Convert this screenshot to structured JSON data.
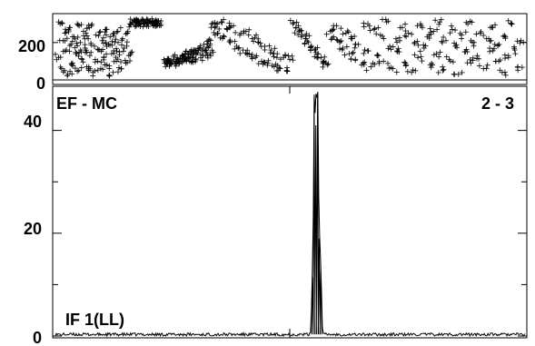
{
  "chart_data": [
    {
      "type": "scatter",
      "ylim": [
        0,
        340
      ],
      "yticks": [
        0,
        200
      ],
      "ytick_labels": [
        "0",
        "200"
      ],
      "marker": "+",
      "grid": false,
      "phase_points": [
        [
          0.02,
          120
        ],
        [
          0.03,
          300
        ],
        [
          0.04,
          60
        ],
        [
          0.05,
          210
        ],
        [
          0.06,
          250
        ],
        [
          0.07,
          160
        ],
        [
          0.08,
          30
        ],
        [
          0.09,
          280
        ],
        [
          0.1,
          190
        ],
        [
          0.11,
          90
        ],
        [
          0.12,
          230
        ],
        [
          0.13,
          140
        ],
        [
          0.14,
          300
        ],
        [
          0.15,
          50
        ],
        [
          0.16,
          200
        ],
        [
          0.17,
          110
        ],
        [
          0.18,
          260
        ],
        [
          0.19,
          170
        ],
        [
          0.2,
          70
        ],
        [
          0.21,
          220
        ],
        [
          0.22,
          130
        ],
        [
          0.23,
          290
        ],
        [
          0.24,
          40
        ],
        [
          0.25,
          180
        ],
        [
          0.26,
          240
        ],
        [
          0.27,
          100
        ],
        [
          0.28,
          160
        ],
        [
          0.29,
          60
        ],
        [
          0.3,
          210
        ],
        [
          0.31,
          120
        ],
        [
          0.32,
          270
        ],
        [
          0.33,
          80
        ],
        [
          0.34,
          190
        ],
        [
          0.35,
          230
        ],
        [
          0.36,
          140
        ],
        [
          0.37,
          40
        ],
        [
          0.38,
          200
        ],
        [
          0.39,
          100
        ],
        [
          0.4,
          260
        ],
        [
          0.41,
          150
        ],
        [
          0.42,
          60
        ],
        [
          0.43,
          220
        ],
        [
          0.44,
          170
        ],
        [
          0.45,
          90
        ],
        [
          0.46,
          250
        ],
        [
          0.47,
          130
        ],
        [
          0.48,
          300
        ],
        [
          0.49,
          310
        ],
        [
          0.5,
          305
        ],
        [
          0.51,
          315
        ],
        [
          0.52,
          308
        ],
        [
          0.53,
          312
        ],
        [
          0.54,
          300
        ],
        [
          0.55,
          306
        ],
        [
          0.56,
          318
        ],
        [
          0.57,
          304
        ],
        [
          0.58,
          310
        ],
        [
          0.59,
          302
        ],
        [
          0.6,
          311
        ],
        [
          0.61,
          307
        ],
        [
          0.62,
          316
        ],
        [
          0.63,
          303
        ],
        [
          0.64,
          309
        ],
        [
          0.65,
          301
        ],
        [
          0.66,
          314
        ],
        [
          0.67,
          305
        ],
        [
          0.7,
          90
        ],
        [
          0.71,
          95
        ],
        [
          0.72,
          100
        ],
        [
          0.73,
          88
        ],
        [
          0.74,
          105
        ],
        [
          0.75,
          92
        ],
        [
          0.76,
          110
        ],
        [
          0.77,
          98
        ],
        [
          0.78,
          120
        ],
        [
          0.79,
          86
        ],
        [
          0.8,
          115
        ],
        [
          0.81,
          130
        ],
        [
          0.82,
          100
        ],
        [
          0.83,
          140
        ],
        [
          0.84,
          108
        ],
        [
          0.85,
          125
        ],
        [
          0.86,
          150
        ],
        [
          0.87,
          95
        ],
        [
          0.88,
          135
        ],
        [
          0.89,
          160
        ],
        [
          0.9,
          112
        ],
        [
          0.91,
          145
        ],
        [
          0.92,
          170
        ],
        [
          0.93,
          120
        ],
        [
          0.94,
          155
        ],
        [
          0.95,
          190
        ],
        [
          0.96,
          130
        ],
        [
          0.97,
          175
        ],
        [
          0.98,
          210
        ],
        [
          0.99,
          140
        ],
        [
          1.0,
          300
        ],
        [
          1.02,
          280
        ],
        [
          1.04,
          250
        ],
        [
          1.06,
          310
        ],
        [
          1.08,
          230
        ],
        [
          1.1,
          270
        ],
        [
          1.12,
          200
        ],
        [
          1.14,
          290
        ],
        [
          1.16,
          180
        ],
        [
          1.18,
          240
        ],
        [
          1.2,
          160
        ],
        [
          1.22,
          260
        ],
        [
          1.24,
          140
        ],
        [
          1.26,
          220
        ],
        [
          1.28,
          120
        ],
        [
          1.3,
          200
        ],
        [
          1.32,
          100
        ],
        [
          1.34,
          180
        ],
        [
          1.36,
          90
        ],
        [
          1.38,
          160
        ],
        [
          1.4,
          70
        ],
        [
          1.42,
          140
        ],
        [
          1.44,
          60
        ],
        [
          1.46,
          120
        ],
        [
          1.48,
          50
        ],
        [
          1.5,
          110
        ],
        [
          1.52,
          300
        ],
        [
          1.54,
          280
        ],
        [
          1.56,
          260
        ],
        [
          1.58,
          240
        ],
        [
          1.6,
          220
        ],
        [
          1.62,
          200
        ],
        [
          1.64,
          180
        ],
        [
          1.66,
          160
        ],
        [
          1.68,
          140
        ],
        [
          1.7,
          120
        ],
        [
          1.72,
          100
        ],
        [
          1.74,
          80
        ],
        [
          1.76,
          260
        ],
        [
          1.78,
          230
        ],
        [
          1.8,
          290
        ],
        [
          1.82,
          200
        ],
        [
          1.84,
          170
        ],
        [
          1.86,
          250
        ],
        [
          1.88,
          140
        ],
        [
          1.9,
          220
        ],
        [
          1.92,
          110
        ],
        [
          1.94,
          190
        ],
        [
          1.96,
          80
        ],
        [
          1.98,
          160
        ],
        [
          2.0,
          300
        ],
        [
          2.02,
          70
        ],
        [
          2.04,
          270
        ],
        [
          2.06,
          130
        ],
        [
          2.08,
          240
        ],
        [
          2.1,
          100
        ],
        [
          2.12,
          310
        ],
        [
          2.14,
          180
        ],
        [
          2.16,
          60
        ],
        [
          2.18,
          220
        ],
        [
          2.2,
          150
        ],
        [
          2.22,
          280
        ],
        [
          2.24,
          90
        ],
        [
          2.26,
          250
        ],
        [
          2.28,
          40
        ],
        [
          2.3,
          200
        ],
        [
          2.32,
          120
        ],
        [
          2.34,
          290
        ],
        [
          2.36,
          170
        ],
        [
          2.38,
          230
        ],
        [
          2.4,
          80
        ],
        [
          2.42,
          260
        ],
        [
          2.44,
          140
        ],
        [
          2.46,
          310
        ],
        [
          2.48,
          50
        ],
        [
          2.5,
          210
        ],
        [
          2.52,
          110
        ],
        [
          2.54,
          270
        ],
        [
          2.56,
          180
        ],
        [
          2.58,
          30
        ],
        [
          2.6,
          240
        ],
        [
          2.62,
          150
        ],
        [
          2.64,
          300
        ],
        [
          2.66,
          90
        ],
        [
          2.68,
          200
        ],
        [
          2.7,
          130
        ],
        [
          2.72,
          250
        ],
        [
          2.74,
          60
        ],
        [
          2.76,
          220
        ],
        [
          2.78,
          170
        ],
        [
          2.8,
          280
        ],
        [
          2.82,
          100
        ],
        [
          2.84,
          190
        ],
        [
          2.86,
          40
        ],
        [
          2.88,
          230
        ],
        [
          2.9,
          120
        ],
        [
          2.92,
          300
        ],
        [
          2.94,
          160
        ],
        [
          2.96,
          70
        ],
        [
          2.98,
          210
        ]
      ]
    },
    {
      "type": "line",
      "ylim": [
        0,
        47
      ],
      "yticks": [
        0,
        20,
        40
      ],
      "ytick_labels": [
        "0",
        "20",
        "40"
      ],
      "labels": {
        "top_left": "EF - MC",
        "top_right": "2 - 3",
        "bottom_left": "IF 1(LL)"
      },
      "grid": false,
      "baseline": 0.3,
      "peaks": [
        {
          "x": 0.548,
          "y": 11.5,
          "width": 0.0015
        },
        {
          "x": 0.552,
          "y": 44.0,
          "width": 0.0015
        },
        {
          "x": 0.5555,
          "y": 41.0,
          "width": 0.0015
        },
        {
          "x": 0.559,
          "y": 47.0,
          "width": 0.0015
        },
        {
          "x": 0.5625,
          "y": 19.0,
          "width": 0.0015
        },
        {
          "x": 0.566,
          "y": 13.0,
          "width": 0.0015
        }
      ]
    }
  ]
}
